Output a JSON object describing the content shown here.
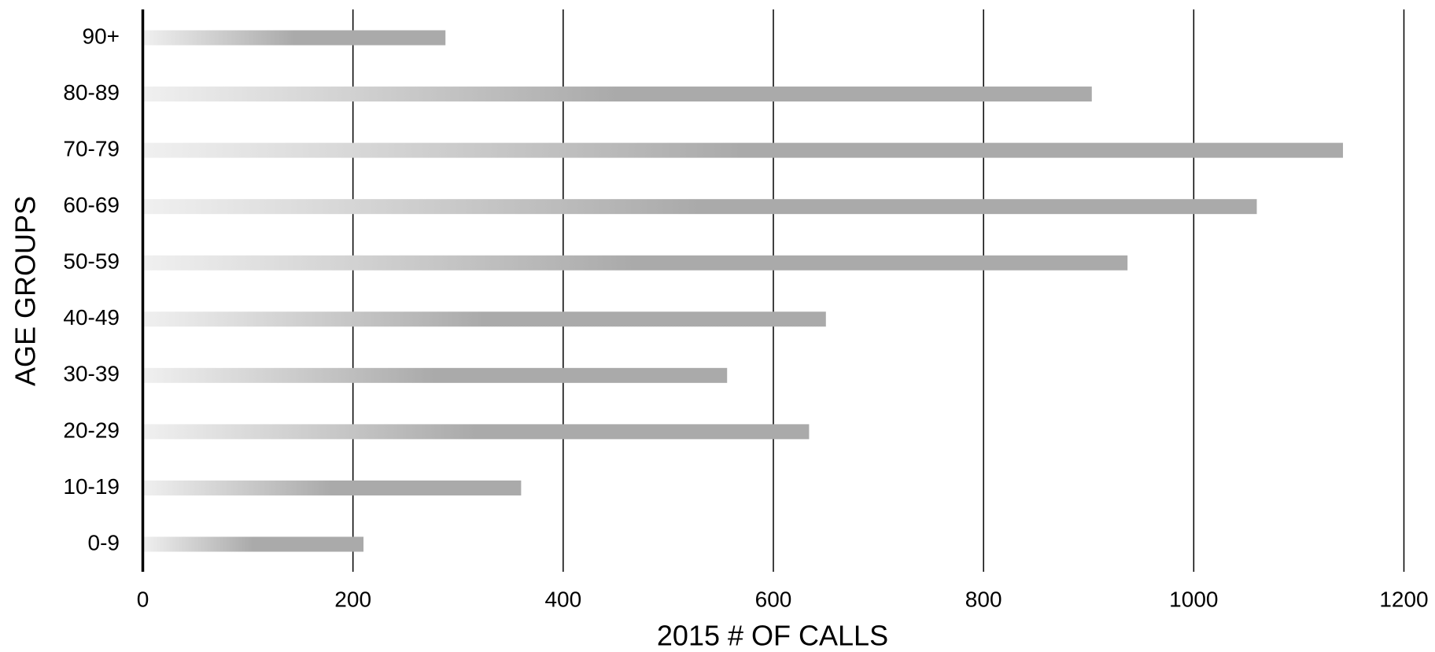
{
  "chart_data": {
    "type": "bar",
    "orientation": "horizontal",
    "x_label": "2015 # OF CALLS",
    "y_label": "AGE GROUPS",
    "categories": [
      "0-9",
      "10-19",
      "20-29",
      "30-39",
      "40-49",
      "50-59",
      "60-69",
      "70-79",
      "80-89",
      "90+"
    ],
    "values": [
      210,
      360,
      634,
      556,
      650,
      937,
      1060,
      1142,
      903,
      288
    ],
    "color": "#aaaaaa",
    "xlim": [
      0,
      1200
    ],
    "xticks": [
      0,
      200,
      400,
      600,
      800,
      1000,
      1200
    ],
    "grid": true
  }
}
